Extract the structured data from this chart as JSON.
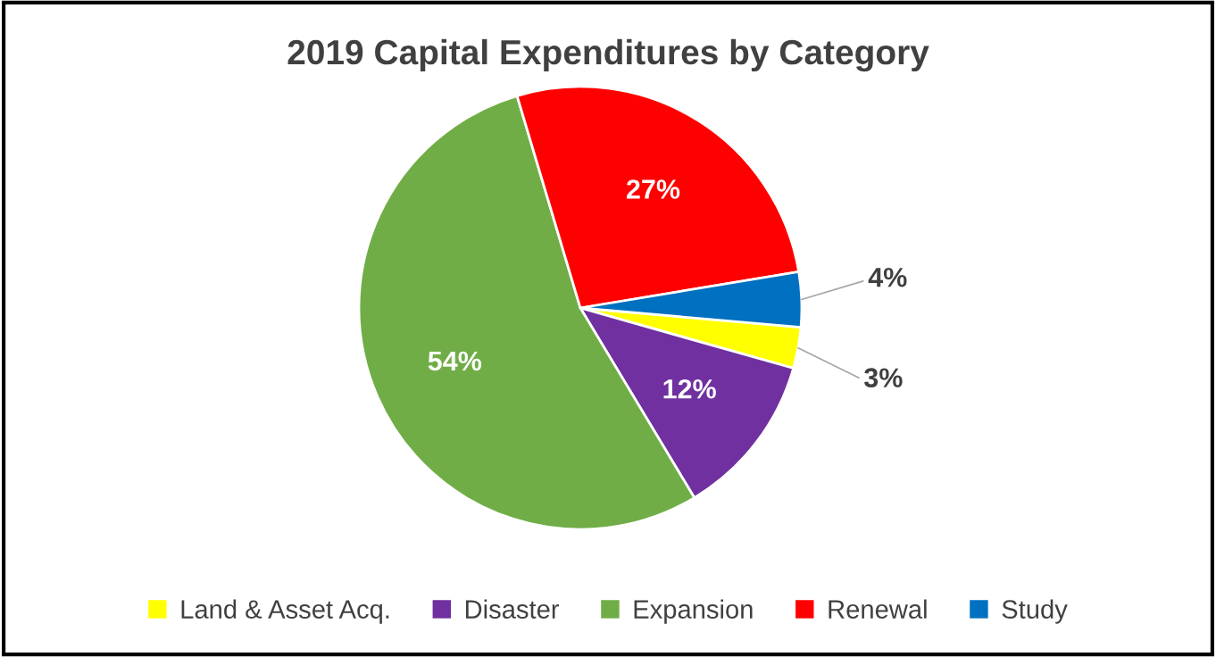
{
  "chart_data": {
    "type": "pie",
    "title": "2019 Capital Expenditures by Category",
    "categories": [
      "Land & Asset Acq.",
      "Disaster",
      "Expansion",
      "Renewal",
      "Study"
    ],
    "values": [
      3,
      12,
      54,
      27,
      4
    ],
    "colors": [
      "#ffff00",
      "#7030a0",
      "#70ad47",
      "#ff0000",
      "#0070c0"
    ],
    "value_labels": [
      "3%",
      "12%",
      "54%",
      "27%",
      "4%"
    ],
    "legend": "bottom"
  }
}
